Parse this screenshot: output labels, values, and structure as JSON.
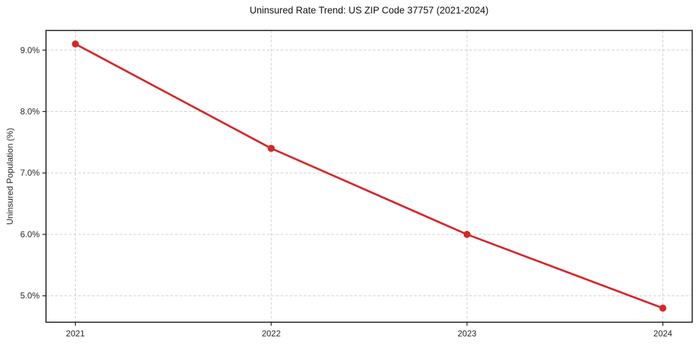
{
  "page": {
    "background": "#ffffff"
  },
  "chart_data": {
    "type": "line",
    "title": "Uninsured Rate Trend: US ZIP Code 37757 (2021-2024)",
    "xlabel": "",
    "ylabel": "Uninsured Population (%)",
    "x": [
      2021,
      2022,
      2023,
      2024
    ],
    "x_tick_labels": [
      "2021",
      "2022",
      "2023",
      "2024"
    ],
    "y_ticks": [
      5.0,
      6.0,
      7.0,
      8.0,
      9.0
    ],
    "y_tick_labels": [
      "5.0%",
      "6.0%",
      "7.0%",
      "8.0%",
      "9.0%"
    ],
    "series": [
      {
        "name": "Uninsured Population (%)",
        "values": [
          9.1,
          7.4,
          6.0,
          4.8
        ],
        "color": "#d62728"
      }
    ],
    "xlim": [
      2020.85,
      2024.15
    ],
    "ylim": [
      4.57,
      9.32
    ],
    "grid": true,
    "grid_color": "#d0d0d0",
    "axis_color": "#1a1a1a",
    "legend_position": "none",
    "line_width": 2.8,
    "marker": "circle",
    "marker_radius": 5
  }
}
